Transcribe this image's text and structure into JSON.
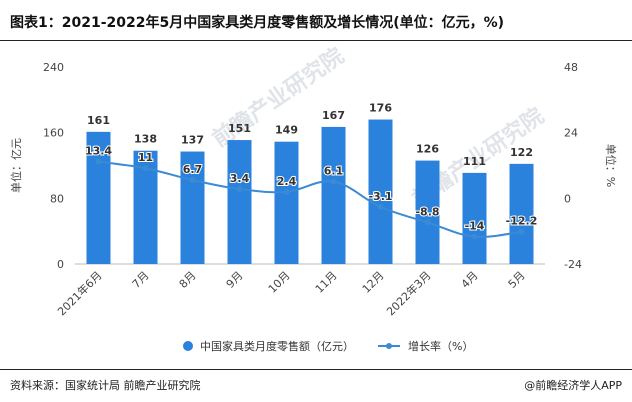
{
  "title": "图表1：2021-2022年5月中国家具类月度零售额及增长情况(单位：亿元，%)",
  "footer": {
    "source": "资料来源：国家统计局 前瞻产业研究院",
    "brand": "@前瞻经济学人APP"
  },
  "watermark": "前瞻产业研究院",
  "chart_data": {
    "type": "bar",
    "categories": [
      "2021年6月",
      "7月",
      "8月",
      "9月",
      "10月",
      "11月",
      "12月",
      "2022年3月",
      "4月",
      "5月"
    ],
    "series": [
      {
        "name": "中国家具类月度零售额（亿元）",
        "type": "bar",
        "axis": "left",
        "values": [
          161,
          138,
          137,
          151,
          149,
          167,
          176,
          126,
          111,
          122
        ],
        "color": "#2a82dc"
      },
      {
        "name": "增长率（%）",
        "type": "line",
        "axis": "right",
        "values": [
          13.4,
          11,
          6.7,
          3.4,
          2.4,
          6.1,
          -3.1,
          -8.8,
          -14,
          -12.2
        ],
        "color": "#3b8ad6"
      }
    ],
    "y_left": {
      "label": "单位：亿元",
      "ticks": [
        0,
        80,
        160,
        240
      ],
      "range": [
        0,
        240
      ]
    },
    "y_right": {
      "label": "单位：%",
      "ticks": [
        -24,
        0,
        24,
        48
      ],
      "range": [
        -24,
        48
      ]
    },
    "grid": false,
    "legend": "bottom"
  }
}
